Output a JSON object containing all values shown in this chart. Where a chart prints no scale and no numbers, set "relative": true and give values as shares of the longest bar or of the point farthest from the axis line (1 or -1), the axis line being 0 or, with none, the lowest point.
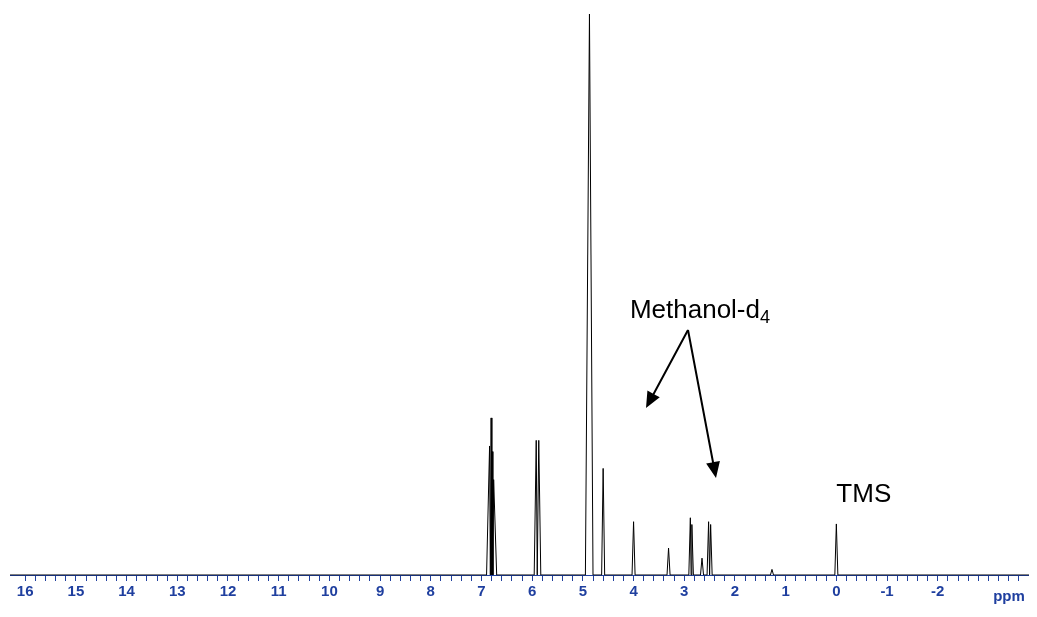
{
  "chart_data": {
    "type": "line",
    "relative": true,
    "xlabel": "ppm",
    "legend": false,
    "grid": false,
    "marker": "none",
    "xlim": [
      16.3,
      -3.8
    ],
    "xticks": [
      16,
      {
        "value": 15.8,
        "label": null
      },
      {
        "value": 15.6,
        "label": null
      },
      {
        "value": 15.4,
        "label": null
      },
      {
        "value": 15.2,
        "label": null
      },
      15,
      {
        "value": 14.8,
        "label": null
      },
      {
        "value": 14.6,
        "label": null
      },
      {
        "value": 14.4,
        "label": null
      },
      {
        "value": 14.2,
        "label": null
      },
      14,
      {
        "value": 13.8,
        "label": null
      },
      {
        "value": 13.6,
        "label": null
      },
      {
        "value": 13.4,
        "label": null
      },
      {
        "value": 13.2,
        "label": null
      },
      13,
      {
        "value": 12.8,
        "label": null
      },
      {
        "value": 12.6,
        "label": null
      },
      {
        "value": 12.4,
        "label": null
      },
      {
        "value": 12.2,
        "label": null
      },
      12,
      {
        "value": 11.8,
        "label": null
      },
      {
        "value": 11.6,
        "label": null
      },
      {
        "value": 11.4,
        "label": null
      },
      {
        "value": 11.2,
        "label": null
      },
      11,
      {
        "value": 10.8,
        "label": null
      },
      {
        "value": 10.6,
        "label": null
      },
      {
        "value": 10.4,
        "label": null
      },
      {
        "value": 10.2,
        "label": null
      },
      10,
      {
        "value": 9.8,
        "label": null
      },
      {
        "value": 9.6,
        "label": null
      },
      {
        "value": 9.4,
        "label": null
      },
      {
        "value": 9.2,
        "label": null
      },
      9,
      {
        "value": 8.8,
        "label": null
      },
      {
        "value": 8.6,
        "label": null
      },
      {
        "value": 8.4,
        "label": null
      },
      {
        "value": 8.2,
        "label": null
      },
      8,
      {
        "value": 7.8,
        "label": null
      },
      {
        "value": 7.6,
        "label": null
      },
      {
        "value": 7.4,
        "label": null
      },
      {
        "value": 7.2,
        "label": null
      },
      7,
      {
        "value": 6.8,
        "label": null
      },
      {
        "value": 6.6,
        "label": null
      },
      {
        "value": 6.4,
        "label": null
      },
      {
        "value": 6.2,
        "label": null
      },
      6,
      {
        "value": 5.8,
        "label": null
      },
      {
        "value": 5.6,
        "label": null
      },
      {
        "value": 5.4,
        "label": null
      },
      {
        "value": 5.2,
        "label": null
      },
      5,
      {
        "value": 4.8,
        "label": null
      },
      {
        "value": 4.6,
        "label": null
      },
      {
        "value": 4.4,
        "label": null
      },
      {
        "value": 4.2,
        "label": null
      },
      4,
      {
        "value": 3.8,
        "label": null
      },
      {
        "value": 3.6,
        "label": null
      },
      {
        "value": 3.4,
        "label": null
      },
      {
        "value": 3.2,
        "label": null
      },
      3,
      {
        "value": 2.8,
        "label": null
      },
      {
        "value": 2.6,
        "label": null
      },
      {
        "value": 2.4,
        "label": null
      },
      {
        "value": 2.2,
        "label": null
      },
      2,
      {
        "value": 1.8,
        "label": null
      },
      {
        "value": 1.6,
        "label": null
      },
      {
        "value": 1.4,
        "label": null
      },
      {
        "value": 1.2,
        "label": null
      },
      1,
      {
        "value": 0.8,
        "label": null
      },
      {
        "value": 0.6,
        "label": null
      },
      {
        "value": 0.4,
        "label": null
      },
      {
        "value": 0.2,
        "label": null
      },
      0,
      {
        "value": -0.2,
        "label": null
      },
      {
        "value": -0.4,
        "label": null
      },
      {
        "value": -0.6,
        "label": null
      },
      {
        "value": -0.8,
        "label": null
      },
      -1,
      {
        "value": -1.2,
        "label": null
      },
      {
        "value": -1.4,
        "label": null
      },
      {
        "value": -1.6,
        "label": null
      },
      {
        "value": -1.8,
        "label": null
      },
      -2,
      {
        "value": -2.2,
        "label": null
      },
      {
        "value": -2.4,
        "label": null
      },
      {
        "value": -2.6,
        "label": null
      },
      {
        "value": -2.8,
        "label": null
      },
      {
        "value": -3,
        "label": null
      },
      {
        "value": -3.2,
        "label": null
      },
      {
        "value": -3.4,
        "label": null
      },
      {
        "value": -3.6,
        "label": null
      }
    ],
    "series": [
      {
        "color": "#000000",
        "x": [
          16.3,
          6.9,
          6.84,
          6.825,
          6.81,
          6.795,
          6.79,
          6.775,
          6.76,
          6.7,
          5.96,
          5.92,
          5.9,
          5.87,
          5.83,
          4.95,
          4.87,
          4.8,
          4.63,
          4.6,
          4.57,
          4.03,
          4.0,
          3.97,
          3.34,
          3.31,
          3.28,
          2.91,
          2.88,
          2.865,
          2.85,
          2.82,
          2.68,
          2.65,
          2.62,
          2.55,
          2.52,
          2.5,
          2.48,
          2.45,
          1.3,
          1.27,
          1.24,
          0.03,
          0,
          -0.03,
          -3.8
        ],
        "values": [
          0,
          0,
          0.23,
          0,
          0.28,
          0,
          0.22,
          0,
          0.17,
          0,
          0,
          0.24,
          0,
          0.24,
          0,
          0,
          1,
          0,
          0,
          0.19,
          0,
          0,
          0.095,
          0,
          0,
          0.048,
          0,
          0,
          0.102,
          0,
          0.09,
          0,
          0,
          0.03,
          0,
          0,
          0.095,
          0,
          0.09,
          0,
          0,
          0.01,
          0,
          0,
          0.091,
          0,
          0
        ]
      }
    ],
    "annotations": [
      "Methanol-d$_{4}$",
      {
        "text": "TMS",
        "x": 0,
        "y": 0.091
      }
    ]
  }
}
